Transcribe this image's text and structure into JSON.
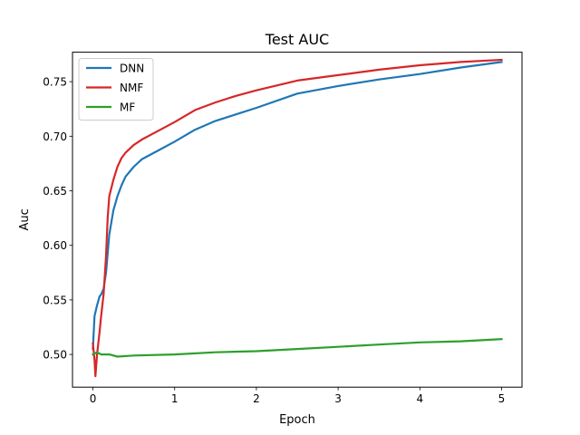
{
  "chart_data": {
    "type": "line",
    "title": "Test AUC",
    "xlabel": "Epoch",
    "ylabel": "Auc",
    "xlim": [
      -0.25,
      5.25
    ],
    "ylim": [
      0.47,
      0.777
    ],
    "xticks": [
      0,
      1,
      2,
      3,
      4,
      5
    ],
    "xtick_labels": [
      "0",
      "1",
      "2",
      "3",
      "4",
      "5"
    ],
    "yticks": [
      0.5,
      0.55,
      0.6,
      0.65,
      0.7,
      0.75
    ],
    "ytick_labels": [
      "0.50",
      "0.55",
      "0.60",
      "0.65",
      "0.70",
      "0.75"
    ],
    "grid": false,
    "legend_position": "top-left",
    "series": [
      {
        "name": "DNN",
        "color": "#1f77b4",
        "x": [
          0.0,
          0.02,
          0.05,
          0.08,
          0.1,
          0.13,
          0.16,
          0.2,
          0.25,
          0.3,
          0.35,
          0.4,
          0.5,
          0.6,
          0.8,
          1.0,
          1.25,
          1.5,
          1.75,
          2.0,
          2.5,
          3.0,
          3.5,
          4.0,
          4.5,
          5.0
        ],
        "y": [
          0.505,
          0.535,
          0.545,
          0.553,
          0.555,
          0.56,
          0.575,
          0.61,
          0.632,
          0.645,
          0.655,
          0.663,
          0.672,
          0.679,
          0.687,
          0.695,
          0.706,
          0.714,
          0.72,
          0.726,
          0.739,
          0.746,
          0.752,
          0.757,
          0.763,
          0.768
        ]
      },
      {
        "name": "NMF",
        "color": "#d62728",
        "x": [
          0.0,
          0.02,
          0.03,
          0.05,
          0.08,
          0.1,
          0.13,
          0.16,
          0.18,
          0.2,
          0.25,
          0.3,
          0.35,
          0.4,
          0.5,
          0.6,
          0.8,
          1.0,
          1.25,
          1.5,
          1.75,
          2.0,
          2.5,
          3.0,
          3.5,
          4.0,
          4.5,
          5.0
        ],
        "y": [
          0.51,
          0.495,
          0.48,
          0.5,
          0.52,
          0.535,
          0.555,
          0.59,
          0.625,
          0.645,
          0.66,
          0.672,
          0.68,
          0.685,
          0.692,
          0.697,
          0.705,
          0.713,
          0.724,
          0.731,
          0.737,
          0.742,
          0.751,
          0.756,
          0.761,
          0.765,
          0.768,
          0.77
        ]
      },
      {
        "name": "MF",
        "color": "#2ca02c",
        "x": [
          0.0,
          0.05,
          0.1,
          0.2,
          0.3,
          0.5,
          1.0,
          1.5,
          2.0,
          2.5,
          3.0,
          3.5,
          4.0,
          4.5,
          5.0
        ],
        "y": [
          0.5,
          0.502,
          0.5,
          0.5,
          0.498,
          0.499,
          0.5,
          0.502,
          0.503,
          0.505,
          0.507,
          0.509,
          0.511,
          0.512,
          0.514
        ]
      }
    ]
  }
}
